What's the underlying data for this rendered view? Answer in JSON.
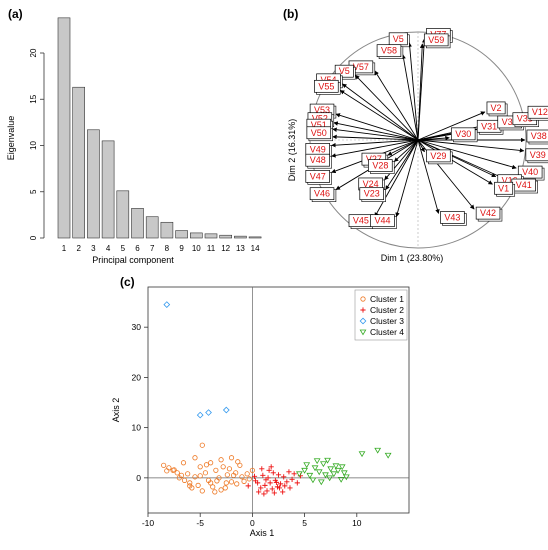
{
  "chart_data": [
    {
      "panel_label": "(a)",
      "type": "bar",
      "xlabel": "Principal component",
      "ylabel": "Eigenvalue",
      "categories": [
        "1",
        "2",
        "3",
        "4",
        "5",
        "6",
        "7",
        "8",
        "9",
        "10",
        "11",
        "12",
        "13",
        "14"
      ],
      "values": [
        23.8,
        16.3,
        11.7,
        10.5,
        5.1,
        3.2,
        2.3,
        1.7,
        0.8,
        0.55,
        0.45,
        0.3,
        0.2,
        0.12
      ],
      "yticks": [
        0,
        5,
        10,
        15,
        20
      ],
      "ylim": [
        0,
        24
      ],
      "bar_color": "#c8c8c8"
    },
    {
      "panel_label": "(b)",
      "type": "correlation-circle",
      "xlabel": "Dim 1 (23.80%)",
      "ylabel": "Dim 2 (16.31%)",
      "label_color": "#dd1111",
      "variables": [
        {
          "name": "V77",
          "x": 0.06,
          "y": 0.94
        },
        {
          "name": "V59",
          "x": 0.04,
          "y": 0.89
        },
        {
          "name": "V5",
          "x": -0.08,
          "y": 0.9
        },
        {
          "name": "V58",
          "x": -0.14,
          "y": 0.79
        },
        {
          "name": "V57",
          "x": -0.4,
          "y": 0.64
        },
        {
          "name": "V5",
          "x": -0.58,
          "y": 0.6
        },
        {
          "name": "V54",
          "x": -0.7,
          "y": 0.52
        },
        {
          "name": "V55",
          "x": -0.72,
          "y": 0.46
        },
        {
          "name": "V53",
          "x": -0.76,
          "y": 0.24
        },
        {
          "name": "V52",
          "x": -0.78,
          "y": 0.16
        },
        {
          "name": "V51",
          "x": -0.79,
          "y": 0.1
        },
        {
          "name": "V50",
          "x": -0.79,
          "y": 0.03
        },
        {
          "name": "V49",
          "x": -0.8,
          "y": -0.05
        },
        {
          "name": "V48",
          "x": -0.8,
          "y": -0.15
        },
        {
          "name": "V47",
          "x": -0.8,
          "y": -0.3
        },
        {
          "name": "V46",
          "x": -0.76,
          "y": -0.46
        },
        {
          "name": "V27",
          "x": -0.28,
          "y": -0.14
        },
        {
          "name": "V28",
          "x": -0.22,
          "y": -0.2
        },
        {
          "name": "V29",
          "x": 0.06,
          "y": -0.11
        },
        {
          "name": "V24",
          "x": -0.31,
          "y": -0.37
        },
        {
          "name": "V23",
          "x": -0.3,
          "y": -0.46
        },
        {
          "name": "V45",
          "x": -0.4,
          "y": -0.71
        },
        {
          "name": "V44",
          "x": -0.2,
          "y": -0.71
        },
        {
          "name": "V43",
          "x": 0.19,
          "y": -0.68
        },
        {
          "name": "V42",
          "x": 0.52,
          "y": -0.64
        },
        {
          "name": "V2",
          "x": 0.62,
          "y": 0.26
        },
        {
          "name": "V31",
          "x": 0.53,
          "y": 0.09
        },
        {
          "name": "V30",
          "x": 0.29,
          "y": 0.02
        },
        {
          "name": "V32",
          "x": 0.72,
          "y": 0.13
        },
        {
          "name": "V33",
          "x": 0.86,
          "y": 0.16
        },
        {
          "name": "V12",
          "x": 1.0,
          "y": 0.22
        },
        {
          "name": "V38",
          "x": 0.99,
          "y": 0.0
        },
        {
          "name": "V39",
          "x": 0.98,
          "y": -0.1
        },
        {
          "name": "V40",
          "x": 0.91,
          "y": -0.26
        },
        {
          "name": "V16",
          "x": 0.72,
          "y": -0.34
        },
        {
          "name": "V41",
          "x": 0.85,
          "y": -0.38
        },
        {
          "name": "V1",
          "x": 0.69,
          "y": -0.41
        }
      ]
    },
    {
      "panel_label": "(c)",
      "type": "scatter",
      "xlabel": "Axis 1",
      "ylabel": "Axis 2",
      "xlim": [
        -10,
        15
      ],
      "ylim": [
        -7,
        38
      ],
      "xticks": [
        -10,
        -5,
        0,
        5,
        10
      ],
      "yticks": [
        0,
        10,
        20,
        30
      ],
      "legend_position": "top-right",
      "series": [
        {
          "name": "Cluster 1",
          "marker": "circle",
          "color": "#ee7722",
          "points": [
            [
              -8.5,
              2.5
            ],
            [
              -8.0,
              2.0
            ],
            [
              -7.6,
              1.5
            ],
            [
              -7.2,
              1.0
            ],
            [
              -6.8,
              0.5
            ],
            [
              -6.5,
              -0.5
            ],
            [
              -6.2,
              0.8
            ],
            [
              -6.0,
              -1.0
            ],
            [
              -5.8,
              -2.0
            ],
            [
              -5.5,
              0.2
            ],
            [
              -5.2,
              -1.5
            ],
            [
              -5.0,
              2.2
            ],
            [
              -4.8,
              -2.6
            ],
            [
              -4.5,
              1.0
            ],
            [
              -4.2,
              -0.5
            ],
            [
              -4.0,
              3.0
            ],
            [
              -3.8,
              -1.8
            ],
            [
              -3.5,
              1.5
            ],
            [
              -3.2,
              0.0
            ],
            [
              -3.0,
              -2.4
            ],
            [
              -2.8,
              2.2
            ],
            [
              -2.5,
              -1.0
            ],
            [
              -2.2,
              1.8
            ],
            [
              -2.0,
              -0.8
            ],
            [
              -1.8,
              0.5
            ],
            [
              -1.5,
              -1.2
            ],
            [
              -1.2,
              2.5
            ],
            [
              -1.0,
              0.2
            ],
            [
              -0.8,
              -0.7
            ],
            [
              -0.5,
              0.8
            ],
            [
              -0.3,
              -0.2
            ],
            [
              0.0,
              1.5
            ],
            [
              -4.8,
              6.5
            ],
            [
              -5.5,
              4.0
            ],
            [
              -6.6,
              3.0
            ],
            [
              -7.5,
              1.6
            ],
            [
              -3.6,
              -2.8
            ],
            [
              -2.6,
              -2.0
            ],
            [
              -4.4,
              2.6
            ],
            [
              -1.4,
              3.2
            ],
            [
              -2.0,
              4.0
            ],
            [
              -3.0,
              3.6
            ],
            [
              -6.0,
              -1.6
            ],
            [
              -7.0,
              0.0
            ],
            [
              -5.0,
              0.4
            ],
            [
              -8.2,
              1.4
            ],
            [
              -4.0,
              -1.0
            ],
            [
              -2.4,
              0.6
            ],
            [
              -3.4,
              -0.6
            ],
            [
              -1.6,
              1.0
            ]
          ]
        },
        {
          "name": "Cluster 2",
          "marker": "plus",
          "color": "#ee1111",
          "points": [
            [
              0.5,
              -1.0
            ],
            [
              0.8,
              -2.0
            ],
            [
              1.0,
              0.5
            ],
            [
              1.2,
              -1.5
            ],
            [
              1.4,
              -2.6
            ],
            [
              1.5,
              0.0
            ],
            [
              1.7,
              -1.0
            ],
            [
              1.9,
              -2.2
            ],
            [
              2.0,
              1.0
            ],
            [
              2.2,
              -0.5
            ],
            [
              2.4,
              -1.8
            ],
            [
              2.5,
              0.6
            ],
            [
              2.7,
              -1.2
            ],
            [
              2.9,
              -2.8
            ],
            [
              3.0,
              0.2
            ],
            [
              3.3,
              -0.8
            ],
            [
              3.5,
              1.2
            ],
            [
              3.8,
              -0.3
            ],
            [
              4.0,
              0.8
            ],
            [
              4.3,
              -1.0
            ],
            [
              0.2,
              0.3
            ],
            [
              0.6,
              -2.8
            ],
            [
              1.1,
              -3.2
            ],
            [
              1.6,
              1.5
            ],
            [
              2.1,
              -3.0
            ],
            [
              -0.4,
              -1.6
            ],
            [
              0.3,
              -0.6
            ],
            [
              1.3,
              -0.4
            ],
            [
              2.6,
              -2.0
            ],
            [
              3.6,
              -2.0
            ],
            [
              4.6,
              0.4
            ],
            [
              0.9,
              1.8
            ],
            [
              1.8,
              2.2
            ],
            [
              2.3,
              -0.9
            ],
            [
              3.1,
              -1.6
            ]
          ]
        },
        {
          "name": "Cluster 3",
          "marker": "diamond",
          "color": "#3399ee",
          "points": [
            [
              -8.2,
              34.5
            ],
            [
              -5.0,
              12.5
            ],
            [
              -4.2,
              13.0
            ],
            [
              -2.5,
              13.5
            ]
          ]
        },
        {
          "name": "Cluster 4",
          "marker": "triangle-down",
          "color": "#33aa22",
          "points": [
            [
              4.5,
              0.8
            ],
            [
              5.0,
              1.5
            ],
            [
              5.5,
              0.5
            ],
            [
              6.0,
              2.0
            ],
            [
              6.4,
              1.2
            ],
            [
              6.8,
              2.8
            ],
            [
              7.0,
              0.6
            ],
            [
              7.2,
              3.5
            ],
            [
              7.5,
              1.8
            ],
            [
              7.8,
              0.8
            ],
            [
              8.0,
              2.4
            ],
            [
              8.2,
              1.5
            ],
            [
              8.5,
              -0.3
            ],
            [
              8.8,
              1.0
            ],
            [
              9.0,
              0.2
            ],
            [
              12.0,
              5.5
            ],
            [
              13.0,
              4.5
            ],
            [
              10.5,
              4.8
            ],
            [
              5.8,
              -0.4
            ],
            [
              6.6,
              -0.8
            ],
            [
              7.4,
              0.0
            ],
            [
              8.6,
              2.2
            ],
            [
              5.2,
              2.6
            ],
            [
              6.2,
              3.4
            ]
          ]
        }
      ]
    }
  ]
}
